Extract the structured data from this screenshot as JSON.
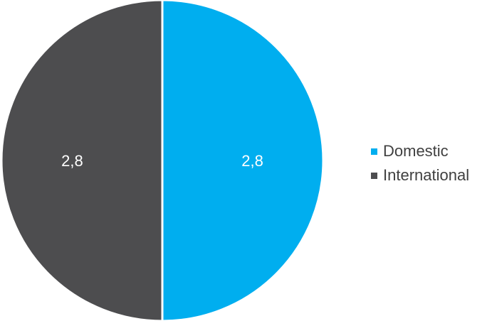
{
  "chart_data": {
    "type": "pie",
    "title": "",
    "slices": [
      {
        "label": "Domestic",
        "value": 2.8,
        "value_label": "2,8",
        "color": "#00AEEF"
      },
      {
        "label": "International",
        "value": 2.8,
        "value_label": "2,8",
        "color": "#4D4D4F"
      }
    ],
    "start_angle": "12 o'clock, clockwise",
    "legend_position": "right",
    "data_label_color": "#FFFFFF",
    "slice_border_color": "#FFFFFF"
  }
}
